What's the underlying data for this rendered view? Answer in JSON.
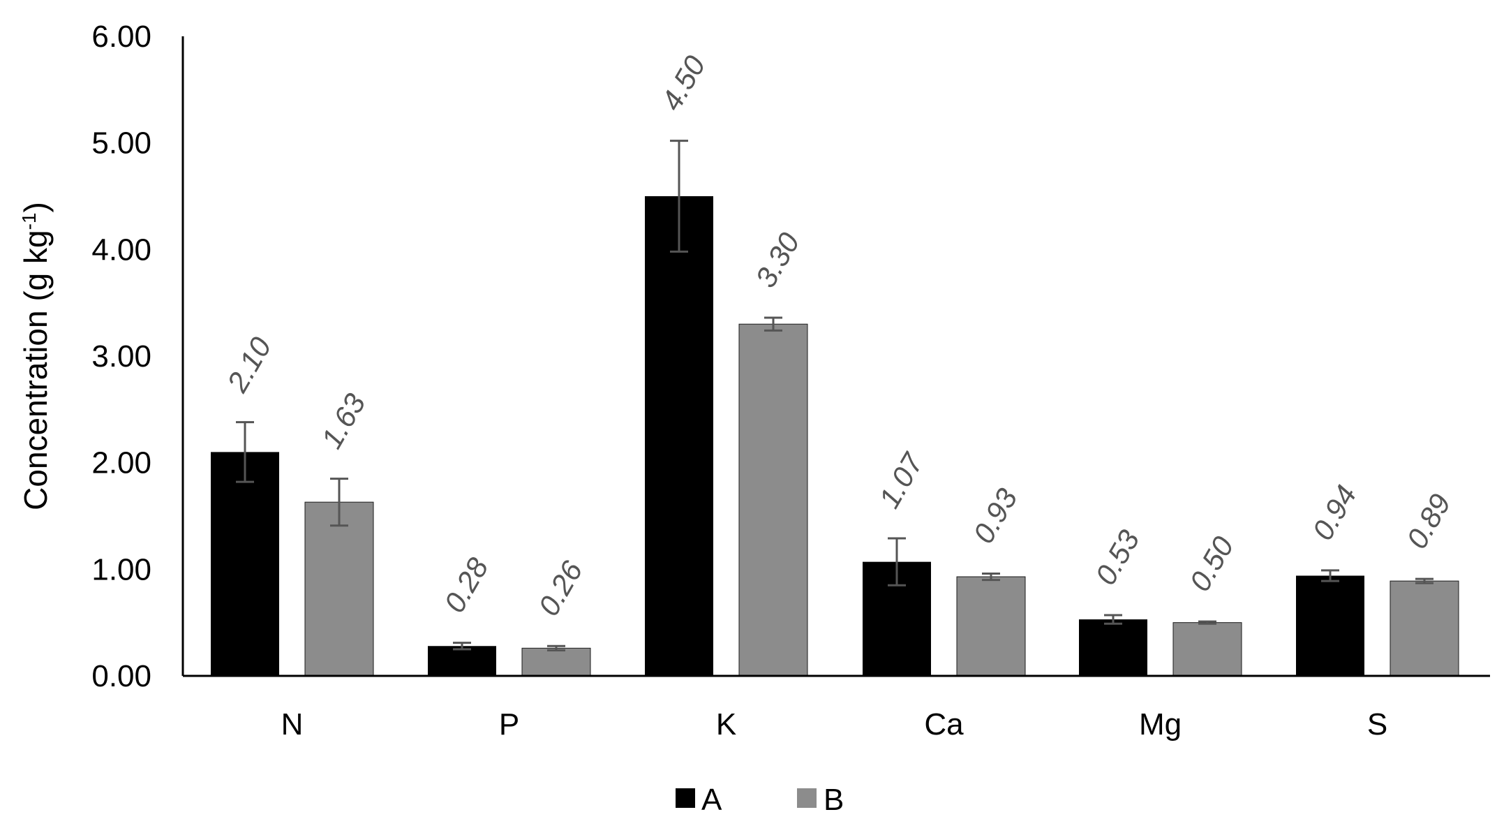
{
  "chart_data": {
    "type": "bar",
    "title": "",
    "xlabel": "",
    "ylabel": "Concentration (g kg",
    "ylabel_superscript": "-1",
    "ylabel_close": ")",
    "ylim": [
      0,
      6
    ],
    "yticks": [
      "0.00",
      "1.00",
      "2.00",
      "3.00",
      "4.00",
      "5.00",
      "6.00"
    ],
    "grid": false,
    "legend_position": "bottom",
    "categories": [
      "N",
      "P",
      "K",
      "Ca",
      "Mg",
      "S"
    ],
    "series": [
      {
        "name": "A",
        "color": "#000000",
        "values": [
          2.1,
          0.28,
          4.5,
          1.07,
          0.53,
          0.94
        ],
        "labels": [
          "2.10",
          "0.28",
          "4.50",
          "1.07",
          "0.53",
          "0.94"
        ],
        "errors": [
          0.28,
          0.03,
          0.52,
          0.22,
          0.04,
          0.05
        ]
      },
      {
        "name": "B",
        "color": "#8c8c8c",
        "values": [
          1.63,
          0.26,
          3.3,
          0.93,
          0.5,
          0.89
        ],
        "labels": [
          "1.63",
          "0.26",
          "3.30",
          "0.93",
          "0.50",
          "0.89"
        ],
        "errors": [
          0.22,
          0.02,
          0.06,
          0.03,
          0.01,
          0.02
        ]
      }
    ]
  }
}
